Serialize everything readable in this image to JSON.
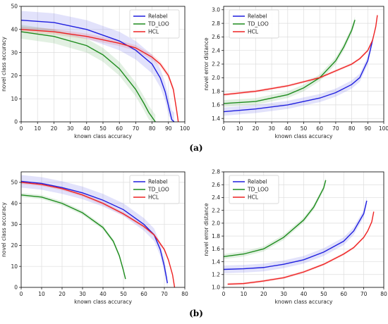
{
  "captions": [
    "(a)",
    "(b)"
  ],
  "colors": {
    "Relabel": "#1f1fdf",
    "TD_LOO": "#1e8c1e",
    "HCL": "#ee2222"
  },
  "chart_data": [
    {
      "type": "line",
      "xlabel": "known class accuracy",
      "ylabel": "novel class accuracy",
      "xlim": [
        0,
        100
      ],
      "ylim": [
        0,
        50
      ],
      "xticks": [
        0,
        10,
        20,
        30,
        40,
        50,
        60,
        70,
        80,
        90,
        100
      ],
      "yticks": [
        0,
        10,
        20,
        30,
        40,
        50
      ],
      "grid": true,
      "legend": "top-right",
      "series": [
        {
          "name": "Relabel",
          "x": [
            0,
            20,
            40,
            60,
            70,
            80,
            85,
            88,
            90,
            92,
            93.5
          ],
          "y": [
            44,
            43,
            40,
            35,
            31,
            25,
            19,
            13,
            7,
            1,
            0
          ],
          "band": 4
        },
        {
          "name": "TD_LOO",
          "x": [
            0,
            20,
            40,
            50,
            60,
            70,
            75,
            78,
            80,
            82
          ],
          "y": [
            39,
            37,
            33,
            29,
            23,
            14,
            8,
            4,
            2,
            0
          ],
          "band": 3
        },
        {
          "name": "HCL",
          "x": [
            0,
            20,
            40,
            60,
            70,
            80,
            85,
            90,
            93,
            95,
            96
          ],
          "y": [
            40,
            39,
            37,
            34,
            32,
            28,
            25,
            20,
            14,
            5,
            0
          ],
          "band": 1.2
        }
      ]
    },
    {
      "type": "line",
      "xlabel": "known class accuracy",
      "ylabel": "novel error distance",
      "xlim": [
        0,
        100
      ],
      "ylim": [
        1.35,
        3.05
      ],
      "xticks": [
        0,
        10,
        20,
        30,
        40,
        50,
        60,
        70,
        80,
        90,
        100
      ],
      "yticks": [
        1.4,
        1.6,
        1.8,
        2.0,
        2.2,
        2.4,
        2.6,
        2.8,
        3.0
      ],
      "grid": true,
      "legend": "top-left",
      "series": [
        {
          "name": "Relabel",
          "x": [
            0,
            20,
            40,
            60,
            70,
            80,
            85,
            90,
            93
          ],
          "y": [
            1.5,
            1.54,
            1.6,
            1.7,
            1.78,
            1.9,
            2.0,
            2.25,
            2.55
          ],
          "band": 0.06
        },
        {
          "name": "TD_LOO",
          "x": [
            0,
            20,
            40,
            50,
            60,
            70,
            75,
            80,
            82
          ],
          "y": [
            1.62,
            1.65,
            1.75,
            1.85,
            2.0,
            2.25,
            2.45,
            2.7,
            2.85
          ],
          "band": 0.05
        },
        {
          "name": "HCL",
          "x": [
            0,
            20,
            40,
            60,
            70,
            80,
            85,
            90,
            93,
            95,
            96
          ],
          "y": [
            1.75,
            1.8,
            1.88,
            2.0,
            2.1,
            2.2,
            2.28,
            2.4,
            2.55,
            2.75,
            2.92
          ],
          "band": 0.02
        }
      ]
    },
    {
      "type": "line",
      "xlabel": "known class accuracy",
      "ylabel": "novel class accuracy",
      "xlim": [
        0,
        80
      ],
      "ylim": [
        0,
        55
      ],
      "xticks": [
        0,
        10,
        20,
        30,
        40,
        50,
        60,
        70,
        80
      ],
      "yticks": [
        0,
        10,
        20,
        30,
        40,
        50
      ],
      "grid": true,
      "legend": "top-right",
      "series": [
        {
          "name": "Relabel",
          "x": [
            0,
            10,
            20,
            30,
            40,
            50,
            60,
            65,
            68,
            70,
            71.5
          ],
          "y": [
            50.5,
            49.5,
            47.5,
            45,
            41.5,
            37,
            30,
            25,
            18,
            10,
            2
          ],
          "band": 3
        },
        {
          "name": "TD_LOO",
          "x": [
            0,
            10,
            20,
            30,
            40,
            45,
            48,
            50,
            51
          ],
          "y": [
            44,
            43,
            40,
            35.5,
            28.5,
            22,
            15,
            8,
            4
          ],
          "band": 1
        },
        {
          "name": "HCL",
          "x": [
            0,
            10,
            20,
            30,
            40,
            50,
            60,
            65,
            70,
            72,
            74,
            75
          ],
          "y": [
            50,
            49,
            47,
            44,
            40,
            35,
            29,
            25,
            18,
            13,
            6,
            0
          ],
          "band": 0.8
        }
      ]
    },
    {
      "type": "line",
      "xlabel": "known class accuracy",
      "ylabel": "novel error distance",
      "xlim": [
        0,
        80
      ],
      "ylim": [
        1.0,
        2.8
      ],
      "xticks": [
        0,
        10,
        20,
        30,
        40,
        50,
        60,
        70,
        80
      ],
      "yticks": [
        1.0,
        1.2,
        1.4,
        1.6,
        1.8,
        2.0,
        2.2,
        2.4,
        2.6,
        2.8
      ],
      "grid": true,
      "legend": "top-left",
      "series": [
        {
          "name": "Relabel",
          "x": [
            0,
            10,
            20,
            30,
            40,
            50,
            60,
            65,
            70,
            71.5
          ],
          "y": [
            1.28,
            1.29,
            1.31,
            1.36,
            1.43,
            1.55,
            1.72,
            1.88,
            2.15,
            2.35
          ],
          "band": 0.06
        },
        {
          "name": "TD_LOO",
          "x": [
            0,
            10,
            20,
            30,
            40,
            45,
            50,
            51
          ],
          "y": [
            1.48,
            1.52,
            1.6,
            1.78,
            2.05,
            2.25,
            2.55,
            2.67
          ],
          "band": 0.04
        },
        {
          "name": "HCL",
          "x": [
            2,
            10,
            20,
            30,
            40,
            50,
            60,
            65,
            70,
            72,
            74,
            75
          ],
          "y": [
            1.05,
            1.06,
            1.1,
            1.15,
            1.24,
            1.36,
            1.52,
            1.62,
            1.78,
            1.88,
            2.02,
            2.18
          ],
          "band": 0.02
        }
      ]
    }
  ]
}
